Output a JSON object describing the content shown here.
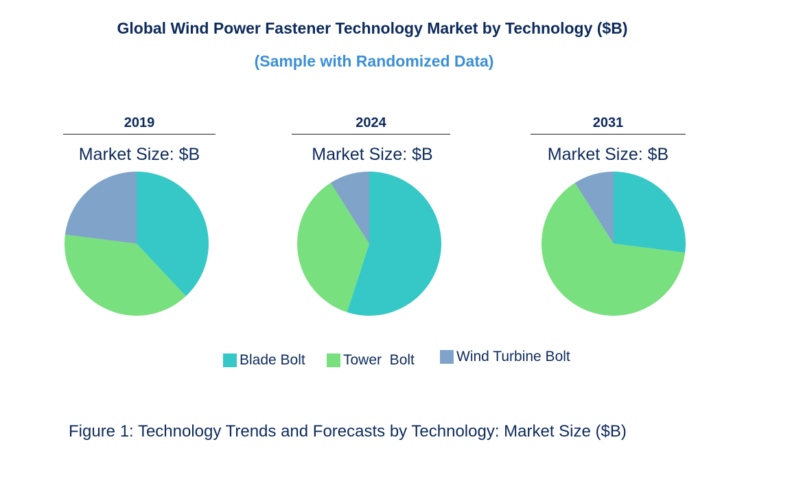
{
  "header": {
    "title": "Global Wind Power Fastener Technology Market by Technology ($B)",
    "subtitle": "(Sample with Randomized Data)"
  },
  "chart_data": {
    "type": "pie",
    "series": [
      {
        "name": "Blade Bolt",
        "color": "#36c8c6"
      },
      {
        "name": "Tower Bolt",
        "color": "#78e07e"
      },
      {
        "name": "Wind Turbine Bolt",
        "color": "#7fa3c9"
      }
    ],
    "pies": [
      {
        "year": "2019",
        "market_label": "Market Size: $B",
        "values": [
          38,
          39,
          23
        ]
      },
      {
        "year": "2024",
        "market_label": "Market Size: $B",
        "values": [
          55,
          36,
          9
        ]
      },
      {
        "year": "2031",
        "market_label": "Market Size: $B",
        "values": [
          27,
          64,
          9
        ]
      }
    ]
  },
  "legend": {
    "items": [
      "Blade Bolt",
      "Tower  Bolt",
      "Wind Turbine Bolt"
    ]
  },
  "caption": "Figure 1: Technology Trends and Forecasts by Technology: Market Size ($B)"
}
